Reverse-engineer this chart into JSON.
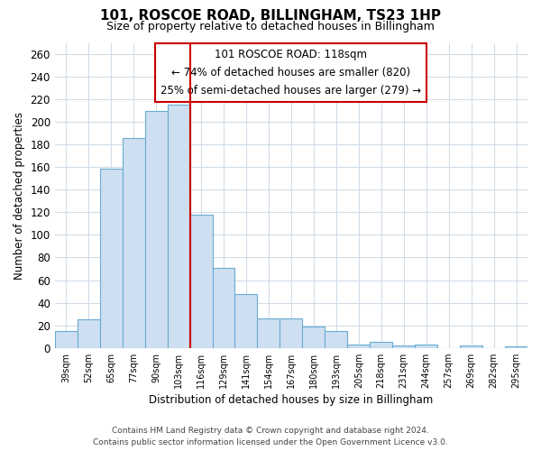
{
  "title": "101, ROSCOE ROAD, BILLINGHAM, TS23 1HP",
  "subtitle": "Size of property relative to detached houses in Billingham",
  "xlabel": "Distribution of detached houses by size in Billingham",
  "ylabel": "Number of detached properties",
  "categories": [
    "39sqm",
    "52sqm",
    "65sqm",
    "77sqm",
    "90sqm",
    "103sqm",
    "116sqm",
    "129sqm",
    "141sqm",
    "154sqm",
    "167sqm",
    "180sqm",
    "193sqm",
    "205sqm",
    "218sqm",
    "231sqm",
    "244sqm",
    "257sqm",
    "269sqm",
    "282sqm",
    "295sqm"
  ],
  "values": [
    15,
    25,
    159,
    186,
    210,
    215,
    118,
    71,
    48,
    26,
    26,
    19,
    15,
    3,
    5,
    2,
    3,
    0,
    2,
    0,
    1
  ],
  "bar_color": "#cddff0",
  "bar_edge_color": "#6aabd2",
  "vline_index": 6,
  "vline_color": "#cc0000",
  "annotation_title": "101 ROSCOE ROAD: 118sqm",
  "annotation_line1": "← 74% of detached houses are smaller (820)",
  "annotation_line2": "25% of semi-detached houses are larger (279) →",
  "annotation_box_edge": "#cc0000",
  "ylim": [
    0,
    270
  ],
  "yticks": [
    0,
    20,
    40,
    60,
    80,
    100,
    120,
    140,
    160,
    180,
    200,
    220,
    240,
    260
  ],
  "footer_line1": "Contains HM Land Registry data © Crown copyright and database right 2024.",
  "footer_line2": "Contains public sector information licensed under the Open Government Licence v3.0.",
  "background_color": "#ffffff",
  "grid_color": "#d0dce8"
}
